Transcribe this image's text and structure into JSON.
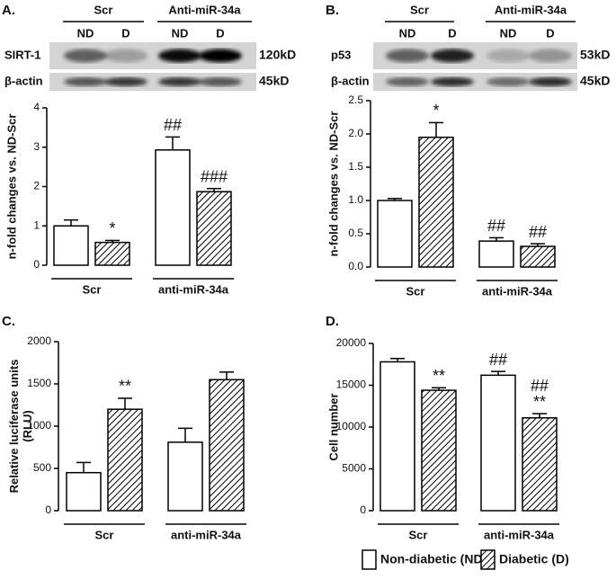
{
  "legend": [
    {
      "name": "Non-diabetic (ND)",
      "fill": "white"
    },
    {
      "name": "Diabetic (D)",
      "fill": "hatch"
    }
  ],
  "chart_data": [
    {
      "type": "bar",
      "title": "A.",
      "ylabel": [
        "n-fold changes vs. ND-Scr"
      ],
      "blot": {
        "groups": [
          "Scr",
          "Anti-miR-34a"
        ],
        "lanes": [
          "ND",
          "D",
          "ND",
          "D"
        ],
        "rows": [
          {
            "label": "SIRT-1",
            "size": "120kD"
          },
          {
            "label": "β-actin",
            "size": "45kD"
          }
        ]
      },
      "categories": [
        "Scr",
        "anti-miR-34a"
      ],
      "ylim": [
        0,
        4
      ],
      "yticks": [
        0,
        1,
        2,
        3,
        4
      ],
      "series": [
        {
          "values": [
            1.0,
            2.93
          ],
          "errors": [
            0.15,
            0.33
          ],
          "annotations": [
            null,
            "##"
          ]
        },
        {
          "values": [
            0.58,
            1.87
          ],
          "errors": [
            0.05,
            0.08
          ],
          "annotations": [
            "*",
            "###"
          ]
        }
      ]
    },
    {
      "type": "bar",
      "title": "B.",
      "ylabel": [
        "n-fold changes vs. ND-Scr"
      ],
      "blot": {
        "groups": [
          "Scr",
          "Anti-miR-34a"
        ],
        "lanes": [
          "ND",
          "D",
          "ND",
          "D"
        ],
        "rows": [
          {
            "label": "p53",
            "size": "53kD"
          },
          {
            "label": "β-actin",
            "size": "45kD"
          }
        ]
      },
      "categories": [
        "Scr",
        "anti-miR-34a"
      ],
      "ylim": [
        0,
        2.5
      ],
      "yticks": [
        {
          "value": 0,
          "label": "0.0"
        },
        0.5,
        {
          "value": 1,
          "label": "1.0"
        },
        1.5,
        {
          "value": 2,
          "label": "2.0"
        },
        2.5
      ],
      "series": [
        {
          "values": [
            1.0,
            0.39
          ],
          "errors": [
            0.03,
            0.05
          ],
          "annotations": [
            null,
            "##"
          ]
        },
        {
          "values": [
            1.95,
            0.31
          ],
          "errors": [
            0.22,
            0.04
          ],
          "annotations": [
            "*",
            "##"
          ]
        }
      ]
    },
    {
      "type": "bar",
      "title": "C.",
      "ylabel": [
        "Relative luciferase units",
        "(RLU)"
      ],
      "categories": [
        "Scr",
        "anti-miR-34a"
      ],
      "ylim": [
        0,
        2000
      ],
      "yticks": [
        0,
        500,
        1000,
        1500,
        2000
      ],
      "series": [
        {
          "values": [
            450,
            810
          ],
          "errors": [
            120,
            165
          ],
          "annotations": [
            null,
            null
          ]
        },
        {
          "values": [
            1200,
            1550
          ],
          "errors": [
            130,
            90
          ],
          "annotations": [
            "**",
            null
          ]
        }
      ]
    },
    {
      "type": "bar",
      "title": "D.",
      "ylabel": [
        "Cell number"
      ],
      "categories": [
        "Scr",
        "anti-miR-34a"
      ],
      "ylim": [
        0,
        20000
      ],
      "yticks": [
        0,
        5000,
        10000,
        15000,
        20000
      ],
      "series": [
        {
          "values": [
            17800,
            16200
          ],
          "errors": [
            400,
            450
          ],
          "annotations": [
            null,
            "##"
          ]
        },
        {
          "values": [
            14400,
            11100
          ],
          "errors": [
            300,
            500
          ],
          "annotations": [
            "**",
            [
              "##",
              "**"
            ]
          ]
        }
      ]
    }
  ]
}
